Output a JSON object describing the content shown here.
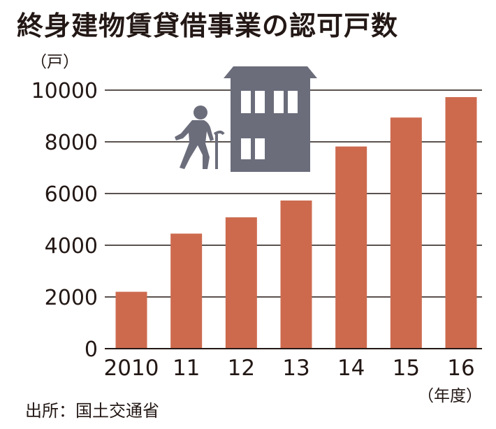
{
  "chart_data": {
    "type": "bar",
    "title": "終身建物賃貸借事業の認可戸数",
    "ylabel": "（戸）",
    "xlabel": "（年度）",
    "categories": [
      "2010",
      "11",
      "12",
      "13",
      "14",
      "15",
      "16"
    ],
    "values": [
      2200,
      4450,
      5080,
      5730,
      7820,
      8940,
      9730
    ],
    "ylim": [
      0,
      10000
    ],
    "yticks": [
      "0",
      "2000",
      "4000",
      "6000",
      "8000",
      "10000"
    ],
    "grid": true,
    "legend": "none"
  },
  "source": "出所：国土交通省",
  "colors": {
    "bar": "#cd6a4e",
    "grid": "#231815",
    "icon": "#6b6d7b",
    "text": "#231815"
  },
  "illustration": {
    "icons": [
      "elderly-person-with-cane-icon",
      "apartment-building-icon"
    ]
  }
}
